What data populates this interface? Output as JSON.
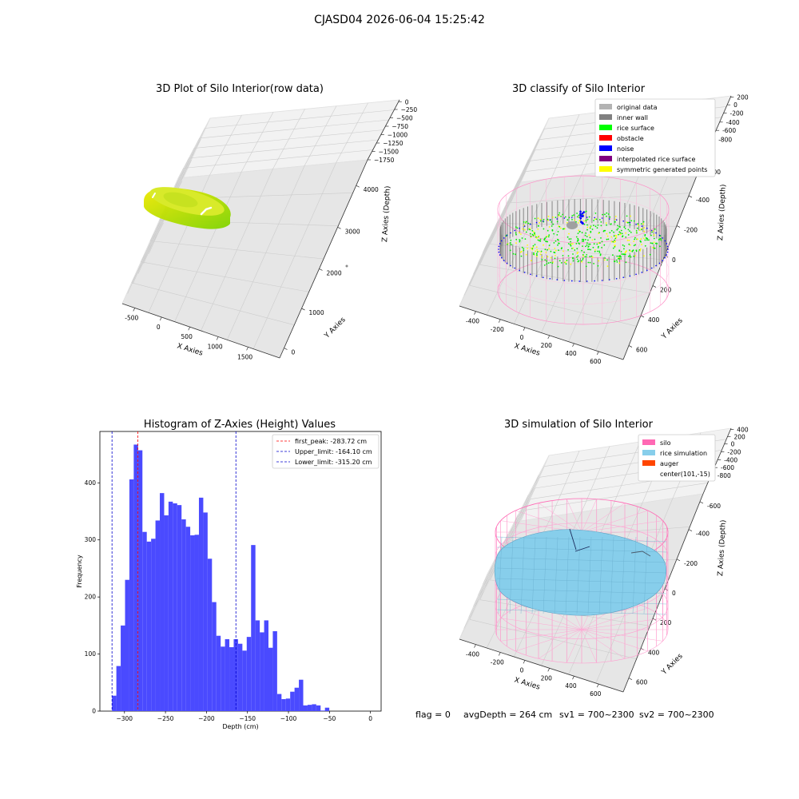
{
  "suptitle": "CJASD04 2026-06-04 15:25:42",
  "footer": {
    "flag": "flag = 0",
    "avg": "avgDepth = 264 cm",
    "sv1": "sv1 = 700~2300",
    "sv2": "sv2 = 700~2300"
  },
  "chart_data": [
    {
      "type": "scatter",
      "title": "3D Plot of Silo Interior(row data)",
      "xlabel": "X Axies",
      "ylabel": "Y Axies",
      "zlabel": "Z Axies (Depth)",
      "x_ticks": [
        "-500",
        "0",
        "500",
        "1000",
        "1500"
      ],
      "y_ticks": [
        "0",
        "1000",
        "2000",
        "3000",
        "4000"
      ],
      "z_ticks": [
        "0",
        "−250",
        "−500",
        "−750",
        "−1000",
        "−1250",
        "−1500",
        "−1750"
      ],
      "colors": {
        "low": "#7fd400",
        "high": "#f0e800"
      }
    },
    {
      "type": "scatter",
      "title": "3D classify of Silo Interior",
      "xlabel": "X Axies",
      "ylabel": "Y Axies",
      "zlabel": "Z Axies (Depth)",
      "x_ticks": [
        "-400",
        "-200",
        "0",
        "200",
        "400",
        "600"
      ],
      "y_ticks": [
        "600",
        "400",
        "200",
        "0",
        "-200",
        "-400",
        "-600"
      ],
      "z_ticks": [
        "200",
        "0",
        "-200",
        "-400",
        "-600",
        "-800"
      ],
      "legend": [
        {
          "label": "original data",
          "color": "#b3b3b3"
        },
        {
          "label": "inner wall",
          "color": "#808080"
        },
        {
          "label": "rice surface",
          "color": "#00ff00"
        },
        {
          "label": "obstacle",
          "color": "#ff0000"
        },
        {
          "label": "noise",
          "color": "#0000ff"
        },
        {
          "label": "interpolated rice surface",
          "color": "#800080"
        },
        {
          "label": "symmetric generated points",
          "color": "#ffff00"
        }
      ],
      "legend_position": "upper right"
    },
    {
      "type": "bar",
      "title": "Histogram of Z-Axies (Height) Values",
      "xlabel": "Depth (cm)",
      "ylabel": "Frequency",
      "xlim": [
        -330,
        13
      ],
      "ylim": [
        0,
        490
      ],
      "x_ticks": [
        -300,
        -250,
        -200,
        -150,
        -100,
        -50,
        0
      ],
      "y_ticks": [
        0,
        100,
        200,
        300,
        400
      ],
      "bin_start": -315.2,
      "bin_width": 5.3,
      "values": [
        27,
        79,
        150,
        230,
        406,
        467,
        457,
        314,
        297,
        302,
        334,
        382,
        343,
        367,
        364,
        361,
        336,
        323,
        308,
        309,
        374,
        348,
        267,
        191,
        132,
        113,
        126,
        112,
        126,
        118,
        106,
        130,
        291,
        159,
        138,
        159,
        111,
        140,
        30,
        21,
        22,
        34,
        41,
        55,
        10,
        11,
        12,
        10,
        1,
        6
      ],
      "bar_color": "#4a4aff",
      "legend": [
        {
          "label": "first_peak: -283.72 cm",
          "value": -283.72,
          "color": "#ff0000"
        },
        {
          "label": "Upper_limit: -164.10 cm",
          "value": -164.1,
          "color": "#0000cc"
        },
        {
          "label": "Lower_limit: -315.20 cm",
          "value": -315.2,
          "color": "#0000cc"
        }
      ],
      "legend_position": "upper right"
    },
    {
      "type": "area",
      "title": "3D simulation of Silo Interior",
      "xlabel": "X Axies",
      "ylabel": "Y Axies",
      "zlabel": "Z Axies (Depth)",
      "x_ticks": [
        "-400",
        "-200",
        "0",
        "200",
        "400",
        "600"
      ],
      "y_ticks": [
        "600",
        "400",
        "200",
        "0",
        "-200",
        "-400",
        "-600"
      ],
      "z_ticks": [
        "400",
        "200",
        "0",
        "-200",
        "-400",
        "-600",
        "-800"
      ],
      "legend": [
        {
          "label": "silo",
          "color": "#ff69b4"
        },
        {
          "label": "rice simulation",
          "color": "#87ceeb"
        },
        {
          "label": "auger",
          "color": "#ff4500"
        },
        {
          "label": "center(101,-15)",
          "color": ""
        }
      ],
      "legend_position": "upper right"
    }
  ]
}
